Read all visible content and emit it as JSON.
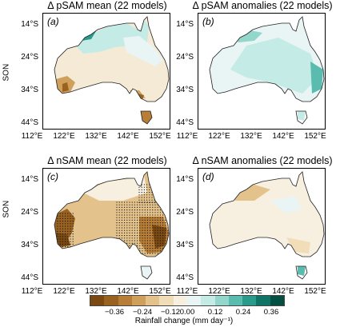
{
  "panels": [
    {
      "id": "a",
      "title": "Δ pSAM mean (22 models)",
      "label": "(a)",
      "side_label": "SON"
    },
    {
      "id": "b",
      "title": "Δ pSAM anomalies (22 models)",
      "label": "(b)",
      "side_label": ""
    },
    {
      "id": "c",
      "title": "Δ nSAM mean (22 models)",
      "label": "(c)",
      "side_label": "SON"
    },
    {
      "id": "d",
      "title": "Δ nSAM anomalies (22 models)",
      "label": "(d)",
      "side_label": ""
    }
  ],
  "lat_ticks": [
    "14°S",
    "24°S",
    "34°S",
    "44°S"
  ],
  "lon_ticks": [
    "112°E",
    "122°E",
    "132°E",
    "142°E",
    "152°E"
  ],
  "colorbar": {
    "label": "Rainfall change (mm day⁻¹)",
    "ticks": [
      "−0.36",
      "−0.24",
      "−0.12",
      "0.00",
      "0.12",
      "0.24",
      "0.36"
    ],
    "colors": [
      "#7a4a12",
      "#9a6221",
      "#b87d36",
      "#cf9f5c",
      "#e3c28c",
      "#f1deb9",
      "#f7efe0",
      "#e8f5f4",
      "#c5ebe6",
      "#93d6cc",
      "#59bcae",
      "#2a9a8a",
      "#117565",
      "#034f42"
    ]
  }
}
